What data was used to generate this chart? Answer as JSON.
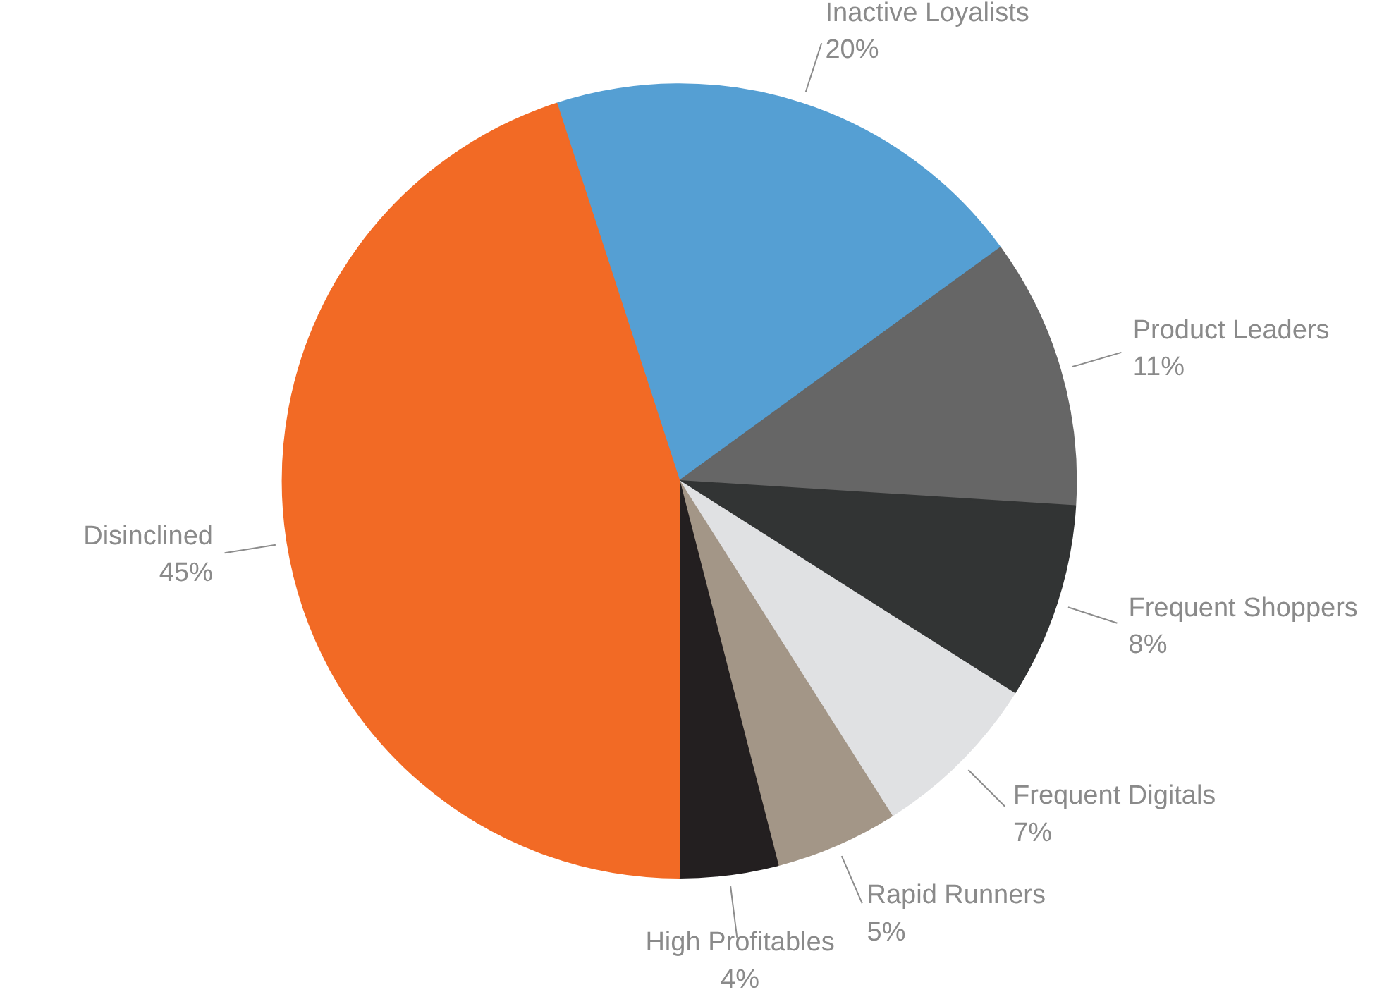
{
  "chart_data": {
    "type": "pie",
    "categories": [
      "Inactive Loyalists",
      "Product Leaders",
      "Frequent Shoppers",
      "Frequent Digitals",
      "Rapid Runners",
      "High Profitables",
      "Disinclined"
    ],
    "values": [
      20,
      11,
      8,
      7,
      5,
      4,
      45
    ],
    "value_labels": [
      "20%",
      "11%",
      "8%",
      "7%",
      "5%",
      "4%",
      "45%"
    ],
    "colors": [
      "#559fd3",
      "#666666",
      "#323434",
      "#e0e1e3",
      "#a39687",
      "#231f20",
      "#f26a25"
    ]
  }
}
